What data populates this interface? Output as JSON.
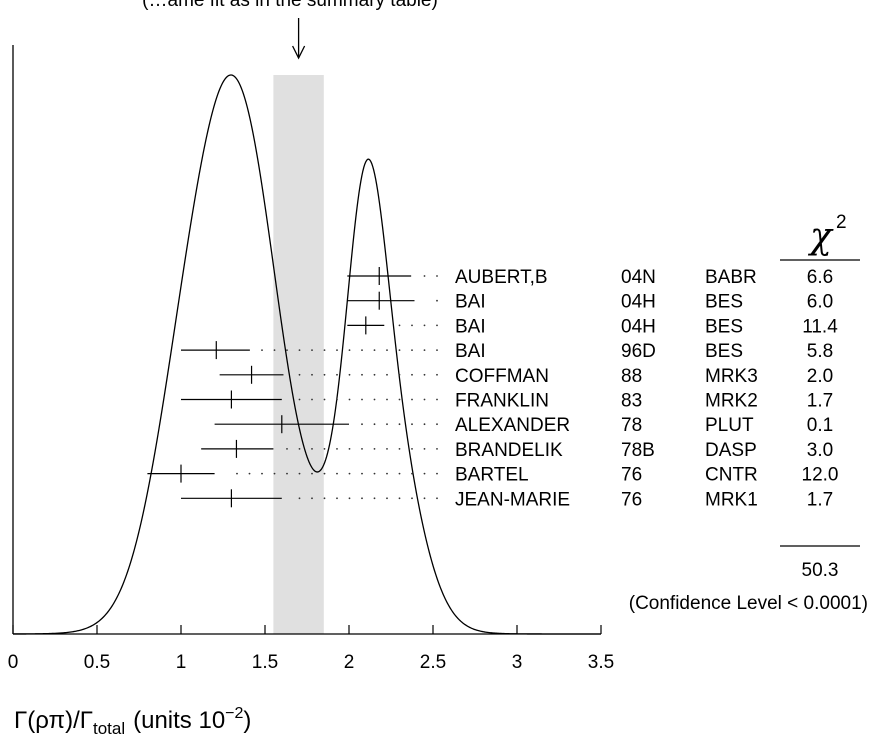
{
  "chart_data": {
    "type": "ideogram",
    "title_fragment": "(…ame fit as in the summary table)",
    "xlabel": {
      "main": "Γ(ρπ)/Γ",
      "subscript": "total",
      "units": "(units 10",
      "exponent": "−2",
      "close": ")"
    },
    "xlim": [
      0,
      3.5
    ],
    "xticks": [
      {
        "value": 0,
        "label": "0"
      },
      {
        "value": 0.5,
        "label": "0.5"
      },
      {
        "value": 1,
        "label": "1"
      },
      {
        "value": 1.5,
        "label": "1.5"
      },
      {
        "value": 2,
        "label": "2"
      },
      {
        "value": 2.5,
        "label": "2.5"
      },
      {
        "value": 3,
        "label": "3"
      },
      {
        "value": 3.5,
        "label": "3.5"
      }
    ],
    "average_band": {
      "low": 1.55,
      "high": 1.85,
      "color": "#e0e0e0"
    },
    "arrow_value": 1.7,
    "chi2_header": "χ",
    "chi2_exponent": "2",
    "measurements": [
      {
        "author": "AUBERT,B",
        "year": "04N",
        "exp": "BABR",
        "value": 2.18,
        "low": 1.99,
        "high": 2.37,
        "chi2": "6.6"
      },
      {
        "author": "BAI",
        "year": "04H",
        "exp": "BES",
        "value": 2.18,
        "low": 1.99,
        "high": 2.39,
        "chi2": "6.0"
      },
      {
        "author": "BAI",
        "year": "04H",
        "exp": "BES",
        "value": 2.1,
        "low": 1.99,
        "high": 2.21,
        "chi2": "11.4"
      },
      {
        "author": "BAI",
        "year": "96D",
        "exp": "BES",
        "value": 1.21,
        "low": 1.0,
        "high": 1.41,
        "chi2": "5.8"
      },
      {
        "author": "COFFMAN",
        "year": "88",
        "exp": "MRK3",
        "value": 1.42,
        "low": 1.23,
        "high": 1.61,
        "chi2": "2.0"
      },
      {
        "author": "FRANKLIN",
        "year": "83",
        "exp": "MRK2",
        "value": 1.3,
        "low": 1.0,
        "high": 1.6,
        "chi2": "1.7"
      },
      {
        "author": "ALEXANDER",
        "year": "78",
        "exp": "PLUT",
        "value": 1.6,
        "low": 1.2,
        "high": 2.0,
        "chi2": "0.1"
      },
      {
        "author": "BRANDELIK",
        "year": "78B",
        "exp": "DASP",
        "value": 1.33,
        "low": 1.12,
        "high": 1.55,
        "chi2": "3.0"
      },
      {
        "author": "BARTEL",
        "year": "76",
        "exp": "CNTR",
        "value": 1.0,
        "low": 0.8,
        "high": 1.2,
        "chi2": "12.0"
      },
      {
        "author": "JEAN-MARIE",
        "year": "76",
        "exp": "MRK1",
        "value": 1.3,
        "low": 1.0,
        "high": 1.6,
        "chi2": "1.7"
      }
    ],
    "chi2_total": "50.3",
    "confidence_note": "(Confidence Level < 0.0001)"
  }
}
